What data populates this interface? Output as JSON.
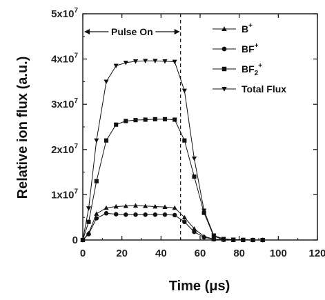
{
  "chart_data": {
    "type": "line",
    "xlabel": "Time (μs)",
    "ylabel": "Relative ion flux (a.u.)",
    "xlim": [
      0,
      120
    ],
    "ylim": [
      0,
      50000000
    ],
    "x_ticks": [
      "0",
      "20",
      "40",
      "60",
      "80",
      "100",
      "120"
    ],
    "y_ticks": [
      {
        "value": 0,
        "mantissa": "0",
        "exp": ""
      },
      {
        "value": 10000000,
        "mantissa": "1x10",
        "exp": "7"
      },
      {
        "value": 20000000,
        "mantissa": "2x10",
        "exp": "7"
      },
      {
        "value": 30000000,
        "mantissa": "3x10",
        "exp": "7"
      },
      {
        "value": 40000000,
        "mantissa": "4x10",
        "exp": "7"
      },
      {
        "value": 50000000,
        "mantissa": "5x10",
        "exp": "7"
      }
    ],
    "pulse_annotation": {
      "label": "Pulse On",
      "start": 0,
      "end": 50
    },
    "legend_position": "top-right",
    "x": [
      0,
      3,
      7,
      12,
      17,
      22,
      27,
      32,
      37,
      42,
      47,
      52,
      57,
      62,
      67,
      72,
      77,
      82,
      87,
      92
    ],
    "series": [
      {
        "name_base": "B",
        "name_sup": "+",
        "name_sub": "",
        "marker": "triangle-up",
        "values": [
          0,
          1500000,
          5800000,
          7100000,
          7400000,
          7500000,
          7600000,
          7500000,
          7400000,
          7300000,
          7100000,
          5000000,
          2500000,
          800000,
          200000,
          50000,
          20000,
          10000,
          5000,
          0
        ]
      },
      {
        "name_base": "BF",
        "name_sup": "+",
        "name_sub": "",
        "marker": "circle",
        "values": [
          0,
          1300000,
          4800000,
          5900000,
          5700000,
          5600000,
          5600000,
          5600000,
          5600000,
          5600000,
          5500000,
          4000000,
          1800000,
          600000,
          150000,
          50000,
          20000,
          10000,
          5000,
          0
        ]
      },
      {
        "name_base": "BF",
        "name_sup": "+",
        "name_sub": "2",
        "marker": "square",
        "values": [
          0,
          4000000,
          13000000,
          22000000,
          25500000,
          26300000,
          26500000,
          26600000,
          26700000,
          26700000,
          26600000,
          22000000,
          14000000,
          6000000,
          800000,
          150000,
          50000,
          20000,
          5000,
          0
        ]
      },
      {
        "name_base": "Total Flux",
        "name_sup": "",
        "name_sub": "",
        "marker": "triangle-down",
        "values": [
          0,
          7000000,
          22000000,
          35000000,
          38500000,
          39200000,
          39500000,
          39600000,
          39600000,
          39500000,
          39400000,
          33000000,
          18000000,
          6500000,
          1000000,
          250000,
          90000,
          40000,
          10000,
          0
        ]
      }
    ]
  }
}
